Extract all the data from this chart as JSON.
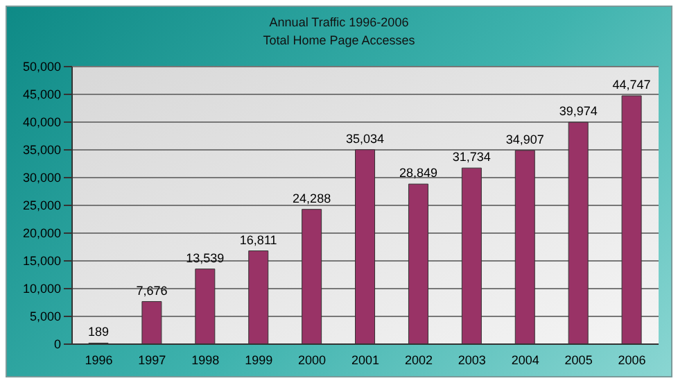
{
  "chart_data": {
    "type": "bar",
    "title": "Annual Traffic 1996-2006",
    "subtitle": "Total Home Page Accesses",
    "categories": [
      "1996",
      "1997",
      "1998",
      "1999",
      "2000",
      "2001",
      "2002",
      "2003",
      "2004",
      "2005",
      "2006"
    ],
    "values": [
      189,
      7676,
      13539,
      16811,
      24288,
      35034,
      28849,
      31734,
      34907,
      39974,
      44747
    ],
    "color": "#993366",
    "ylim": [
      0,
      50000
    ],
    "yticks": [
      {
        "value": 0,
        "label": "0"
      },
      {
        "value": 5000,
        "label": "5,000"
      },
      {
        "value": 10000,
        "label": "10,000"
      },
      {
        "value": 15000,
        "label": "15,000"
      },
      {
        "value": 20000,
        "label": "20,000"
      },
      {
        "value": 25000,
        "label": "25,000"
      },
      {
        "value": 30000,
        "label": "30,000"
      },
      {
        "value": 35000,
        "label": "35,000"
      },
      {
        "value": 40000,
        "label": "40,000"
      },
      {
        "value": 45000,
        "label": "45,000"
      },
      {
        "value": 50000,
        "label": "50,000"
      }
    ],
    "value_labels": [
      "189",
      "7,676",
      "13,539",
      "16,811",
      "24,288",
      "35,034",
      "28,849",
      "31,734",
      "34,907",
      "39,974",
      "44,747"
    ],
    "grid": "y"
  }
}
